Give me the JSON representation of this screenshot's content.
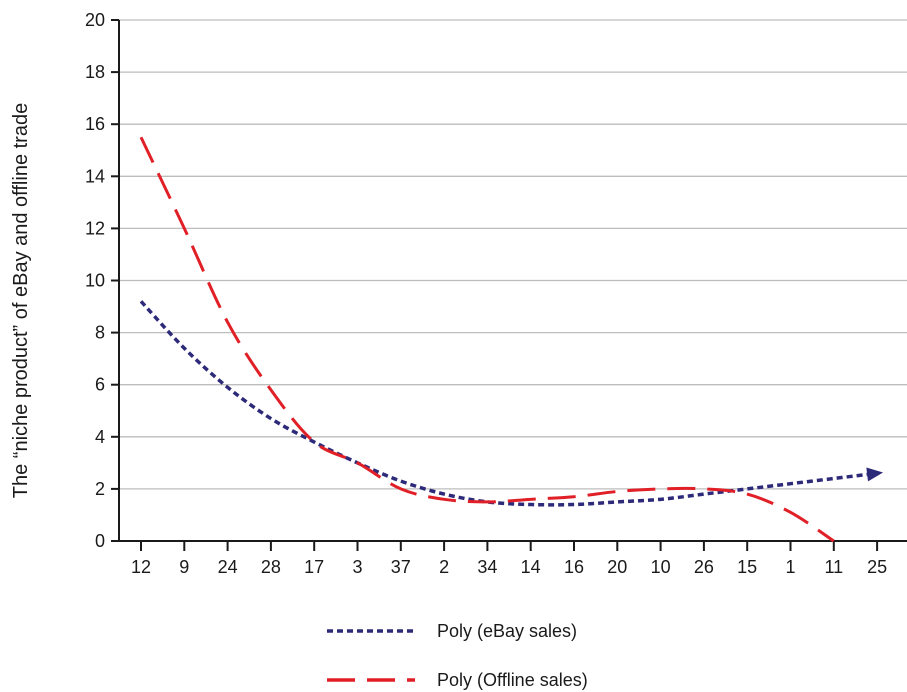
{
  "chart_data": {
    "type": "line",
    "title": "",
    "xlabel": "",
    "ylabel": "The “niche product” of eBay and offline trade",
    "categories": [
      "12",
      "9",
      "24",
      "28",
      "17",
      "3",
      "37",
      "2",
      "34",
      "14",
      "16",
      "20",
      "10",
      "26",
      "15",
      "1",
      "11",
      "25"
    ],
    "yticks": [
      "0",
      "2",
      "4",
      "6",
      "8",
      "10",
      "12",
      "14",
      "16",
      "18",
      "20"
    ],
    "ylim": [
      0,
      20
    ],
    "grid": "horizontal",
    "legend_position": "bottom",
    "series": [
      {
        "name": "Poly (eBay sales)",
        "style": "dotted",
        "color": "#2e2a7a",
        "values": [
          9.2,
          7.4,
          5.9,
          4.7,
          3.8,
          3.0,
          2.3,
          1.8,
          1.5,
          1.4,
          1.4,
          1.5,
          1.6,
          1.8,
          2.0,
          2.2,
          2.4,
          2.6
        ]
      },
      {
        "name": "Poly (Offline sales)",
        "style": "dashed",
        "color": "#e01f26",
        "values": [
          15.5,
          12.0,
          8.4,
          5.8,
          3.8,
          3.0,
          2.0,
          1.6,
          1.5,
          1.6,
          1.7,
          1.9,
          2.0,
          2.0,
          1.8,
          1.1,
          0,
          null
        ]
      }
    ]
  }
}
